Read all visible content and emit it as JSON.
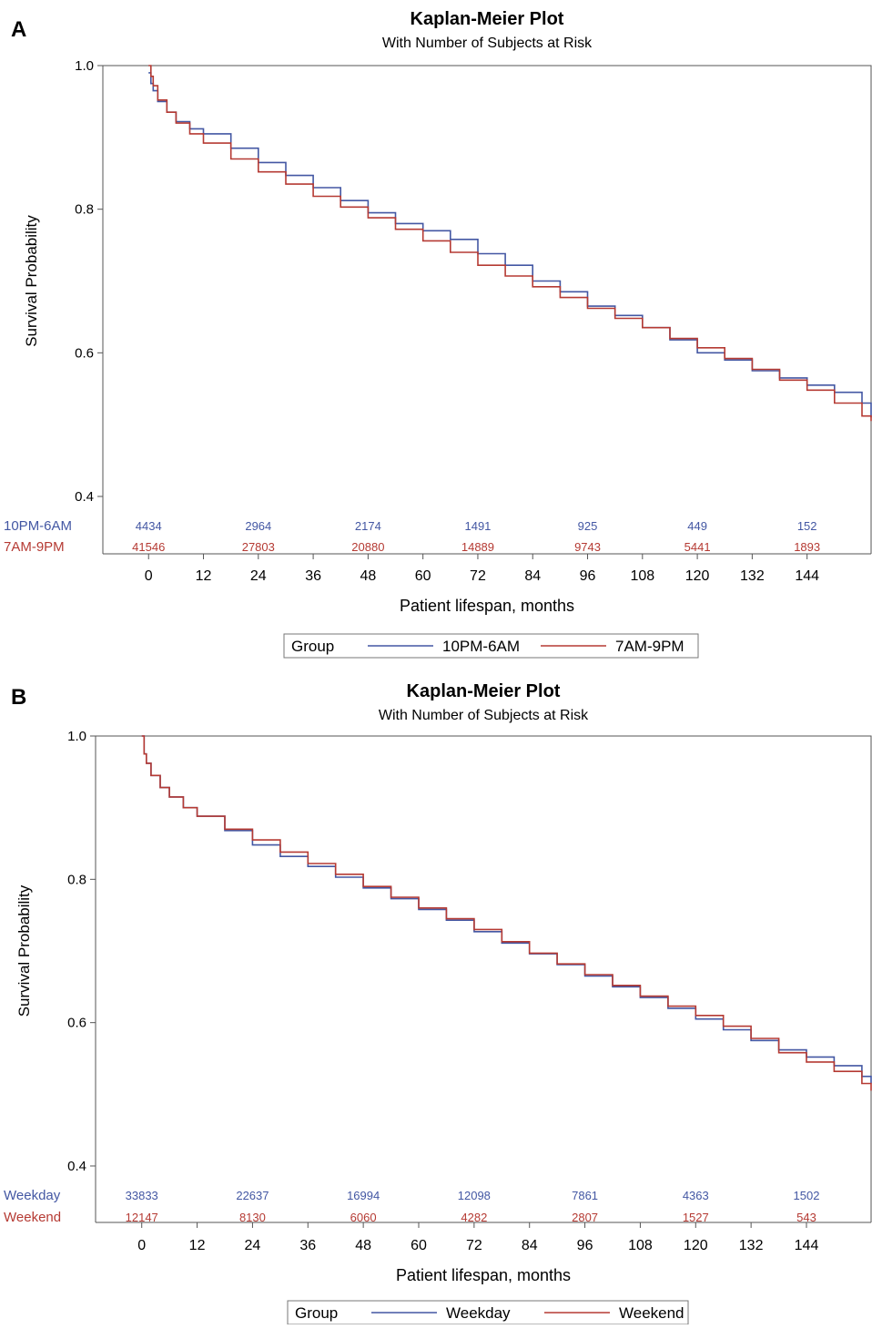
{
  "panels": [
    {
      "letter": "A",
      "chart_data": {
        "type": "line",
        "title": "Kaplan-Meier Plot",
        "subtitle": "With Number of Subjects at Risk",
        "xlabel": "Patient lifespan, months",
        "ylabel": "Survival Probability",
        "xlim": [
          -10,
          158
        ],
        "ylim": [
          0.4,
          1.0
        ],
        "x_ticks": [
          0,
          12,
          24,
          36,
          48,
          60,
          72,
          84,
          96,
          108,
          120,
          132,
          144
        ],
        "y_ticks": [
          0.4,
          0.6,
          0.8,
          1.0
        ],
        "y_tick_labels": [
          "0.4",
          "0.6",
          "0.8",
          "1.0"
        ],
        "grid": false,
        "legend": {
          "placement": "bottom",
          "title": "Group"
        },
        "series": [
          {
            "name": "10PM-6AM",
            "color": "#4357a3",
            "x": [
              0,
              0.5,
              1,
              2,
              4,
              6,
              9,
              12,
              18,
              24,
              30,
              36,
              42,
              48,
              54,
              60,
              66,
              72,
              78,
              84,
              90,
              96,
              102,
              108,
              114,
              120,
              126,
              132,
              138,
              144,
              150,
              156,
              158
            ],
            "y": [
              0.99,
              0.975,
              0.965,
              0.95,
              0.935,
              0.922,
              0.912,
              0.905,
              0.885,
              0.865,
              0.847,
              0.83,
              0.812,
              0.795,
              0.78,
              0.77,
              0.758,
              0.738,
              0.722,
              0.7,
              0.685,
              0.665,
              0.652,
              0.635,
              0.618,
              0.6,
              0.59,
              0.575,
              0.565,
              0.555,
              0.545,
              0.53,
              0.51
            ]
          },
          {
            "name": "7AM-9PM",
            "color": "#b53a33",
            "x": [
              0,
              0.5,
              1,
              2,
              4,
              6,
              9,
              12,
              18,
              24,
              30,
              36,
              42,
              48,
              54,
              60,
              66,
              72,
              78,
              84,
              90,
              96,
              102,
              108,
              114,
              120,
              126,
              132,
              138,
              144,
              150,
              156,
              158
            ],
            "y": [
              1.0,
              0.985,
              0.972,
              0.952,
              0.935,
              0.92,
              0.905,
              0.892,
              0.87,
              0.852,
              0.835,
              0.818,
              0.803,
              0.788,
              0.772,
              0.756,
              0.74,
              0.722,
              0.707,
              0.692,
              0.677,
              0.662,
              0.648,
              0.635,
              0.62,
              0.607,
              0.592,
              0.577,
              0.562,
              0.548,
              0.53,
              0.512,
              0.505
            ]
          }
        ],
        "at_risk": {
          "x": [
            0,
            24,
            48,
            72,
            96,
            120,
            144
          ],
          "rows": [
            {
              "label": "10PM-6AM",
              "color": "#4357a3",
              "values": [
                "4434",
                "2964",
                "2174",
                "1491",
                "925",
                "449",
                "152"
              ]
            },
            {
              "label": "7AM-9PM",
              "color": "#b53a33",
              "values": [
                "41546",
                "27803",
                "20880",
                "14889",
                "9743",
                "5441",
                "1893"
              ]
            }
          ]
        }
      }
    },
    {
      "letter": "B",
      "chart_data": {
        "type": "line",
        "title": "Kaplan-Meier Plot",
        "subtitle": "With Number of Subjects at Risk",
        "xlabel": "Patient lifespan, months",
        "ylabel": "Survival Probability",
        "xlim": [
          -10,
          158
        ],
        "ylim": [
          0.4,
          1.0
        ],
        "x_ticks": [
          0,
          12,
          24,
          36,
          48,
          60,
          72,
          84,
          96,
          108,
          120,
          132,
          144
        ],
        "y_ticks": [
          0.4,
          0.6,
          0.8,
          1.0
        ],
        "y_tick_labels": [
          "0.4",
          "0.6",
          "0.8",
          "1.0"
        ],
        "grid": false,
        "legend": {
          "placement": "bottom",
          "title": "Group"
        },
        "series": [
          {
            "name": "Weekday",
            "color": "#4357a3",
            "x": [
              0,
              0.5,
              1,
              2,
              4,
              6,
              9,
              12,
              18,
              24,
              30,
              36,
              42,
              48,
              54,
              60,
              66,
              72,
              78,
              84,
              90,
              96,
              102,
              108,
              114,
              120,
              126,
              132,
              138,
              144,
              150,
              156,
              158
            ],
            "y": [
              1.0,
              0.975,
              0.962,
              0.945,
              0.928,
              0.915,
              0.9,
              0.888,
              0.868,
              0.848,
              0.832,
              0.818,
              0.803,
              0.788,
              0.773,
              0.758,
              0.743,
              0.727,
              0.711,
              0.696,
              0.681,
              0.665,
              0.65,
              0.635,
              0.62,
              0.605,
              0.59,
              0.575,
              0.562,
              0.552,
              0.54,
              0.525,
              0.515
            ]
          },
          {
            "name": "Weekend",
            "color": "#b53a33",
            "x": [
              0,
              0.5,
              1,
              2,
              4,
              6,
              9,
              12,
              18,
              24,
              30,
              36,
              42,
              48,
              54,
              60,
              66,
              72,
              78,
              84,
              90,
              96,
              102,
              108,
              114,
              120,
              126,
              132,
              138,
              144,
              150,
              156,
              158
            ],
            "y": [
              1.0,
              0.975,
              0.962,
              0.945,
              0.928,
              0.915,
              0.9,
              0.888,
              0.87,
              0.855,
              0.838,
              0.822,
              0.807,
              0.79,
              0.775,
              0.76,
              0.745,
              0.73,
              0.713,
              0.697,
              0.682,
              0.667,
              0.652,
              0.637,
              0.623,
              0.61,
              0.595,
              0.578,
              0.558,
              0.545,
              0.532,
              0.515,
              0.505
            ]
          }
        ],
        "at_risk": {
          "x": [
            0,
            24,
            48,
            72,
            96,
            120,
            144
          ],
          "rows": [
            {
              "label": "Weekday",
              "color": "#4357a3",
              "values": [
                "33833",
                "22637",
                "16994",
                "12098",
                "7861",
                "4363",
                "1502"
              ]
            },
            {
              "label": "Weekend",
              "color": "#b53a33",
              "values": [
                "12147",
                "8130",
                "6060",
                "4282",
                "2807",
                "1527",
                "543"
              ]
            }
          ]
        }
      }
    }
  ]
}
